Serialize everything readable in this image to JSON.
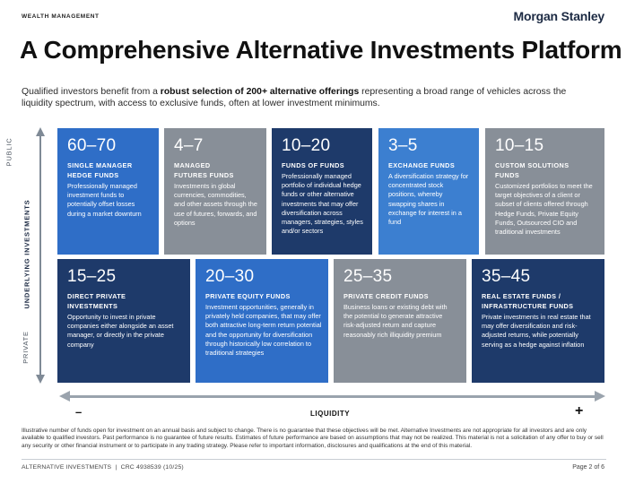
{
  "header": {
    "section_label": "WEALTH MANAGEMENT",
    "brand": "Morgan Stanley"
  },
  "page_title": "A Comprehensive Alternative Investments Platform",
  "intro": {
    "text_before": "Qualified investors benefit from a ",
    "text_bold": "robust selection of 200+ alternative offerings",
    "text_after": " representing a broad range of vehicles across the liquidity spectrum, with access to exclusive funds, often at lower investment minimums."
  },
  "axis": {
    "public": "PUBLIC",
    "underlying": "UNDERLYING INVESTMENTS",
    "private": "PRIVATE",
    "liquidity": "LIQUIDITY",
    "minus": "–",
    "plus": "+"
  },
  "cards": [
    {
      "number": "60–70",
      "heading": "SINGLE MANAGER HEDGE FUNDS",
      "description": "Professionally managed investment funds to potentially offset losses during a market downturn",
      "color": "#2f6ec7"
    },
    {
      "number": "4–7",
      "heading": "MANAGED FUTURES FUNDS",
      "description": "Investments in global currencies, commodities, and other assets through the use of futures, forwards, and options",
      "color": "#888f98"
    },
    {
      "number": "10–20",
      "heading": "FUNDS OF FUNDS",
      "description": "Professionally managed portfolio of individual hedge funds or other alternative investments that may offer diversification across managers, strategies, styles and/or sectors",
      "color": "#1e3a6a"
    },
    {
      "number": "3–5",
      "heading": "EXCHANGE FUNDS",
      "description": "A diversification strategy for concentrated stock positions, whereby swapping shares in exchange for interest in a fund",
      "color": "#3c7fd0"
    },
    {
      "number": "10–15",
      "heading": "CUSTOM SOLUTIONS FUNDS",
      "description": "Customized portfolios to meet the target objectives of a client or subset of clients offered through Hedge Funds, Private Equity Funds, Outsourced CIO and traditional investments",
      "color": "#888f98"
    },
    {
      "number": "15–25",
      "heading": "DIRECT PRIVATE INVESTMENTS",
      "description": "Opportunity to invest in private companies either alongside an asset manager, or directly in the private company",
      "color": "#1e3a6a"
    },
    {
      "number": "20–30",
      "heading": "PRIVATE EQUITY FUNDS",
      "description": "Investment opportunities, generally in privately held companies, that may offer both attractive long-term return potential and the opportunity for diversification through historically low correlation to traditional strategies",
      "color": "#2f6ec7"
    },
    {
      "number": "25–35",
      "heading": "PRIVATE CREDIT FUNDS",
      "description": "Business loans or existing debt with the potential to generate attractive risk-adjusted return and capture reasonably rich illiquidity premium",
      "color": "#888f98"
    },
    {
      "number": "35–45",
      "heading": "REAL ESTATE FUNDS / INFRASTRUCTURE FUNDS",
      "description": "Private investments in real estate that may offer diversification and risk-adjusted returns, while potentially serving as a hedge against inflation",
      "color": "#1e3a6a"
    }
  ],
  "disclaimer": "Illustrative number of funds open for investment on an annual basis and subject to change. There is no guarantee that these objectives will be met. Alternative Investments are not appropriate for all investors and are only available to qualified investors. Past performance is no guarantee of future results. Estimates of future performance are based on assumptions that may not be realized. This material is not a solicitation of any offer to buy or sell any security or other financial instrument or to participate in any trading strategy. Please refer to important information, disclosures and qualifications at the end of this material.",
  "footer": {
    "left": "ALTERNATIVE INVESTMENTS  |  CRC 4938539 (10/25)",
    "right": "Page 2 of 6"
  }
}
